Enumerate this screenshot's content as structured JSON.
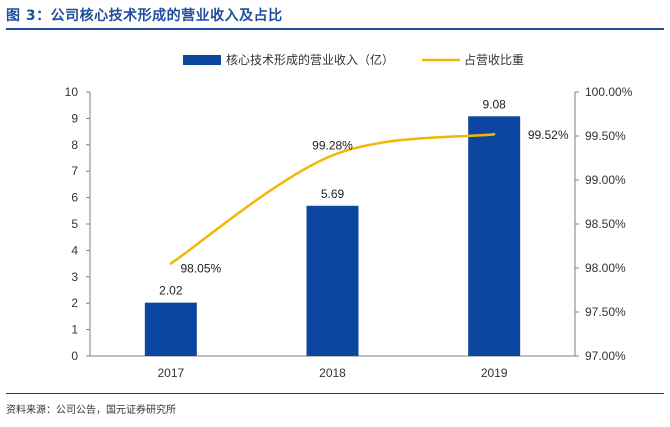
{
  "figure": {
    "title": "图 3：公司核心技术形成的营业收入及占比",
    "source": "资料来源：公司公告，国元证券研究所"
  },
  "colors": {
    "bar": "#0b47a1",
    "line": "#f2b705",
    "title": "#1f4e9c",
    "axis": "#7f7f7f"
  },
  "chart_data": {
    "type": "bar",
    "categories": [
      "2017",
      "2018",
      "2019"
    ],
    "series": [
      {
        "name": "核心技术形成的营业收入（亿）",
        "type": "bar",
        "axis": "left",
        "values": [
          2.02,
          5.69,
          9.08
        ],
        "labels": [
          "2.02",
          "5.69",
          "9.08"
        ]
      },
      {
        "name": "占营收比重",
        "type": "line",
        "axis": "right",
        "values": [
          98.05,
          99.28,
          99.52
        ],
        "labels": [
          "98.05%",
          "99.28%",
          "99.52%"
        ]
      }
    ],
    "y_left": {
      "min": 0,
      "max": 10,
      "ticks": [
        "0",
        "1",
        "2",
        "3",
        "4",
        "5",
        "6",
        "7",
        "8",
        "9",
        "10"
      ]
    },
    "y_right": {
      "min": 97.0,
      "max": 100.0,
      "ticks": [
        "97.00%",
        "97.50%",
        "98.00%",
        "98.50%",
        "99.00%",
        "99.50%",
        "100.00%"
      ]
    },
    "legend_position": "top",
    "grid": false
  }
}
